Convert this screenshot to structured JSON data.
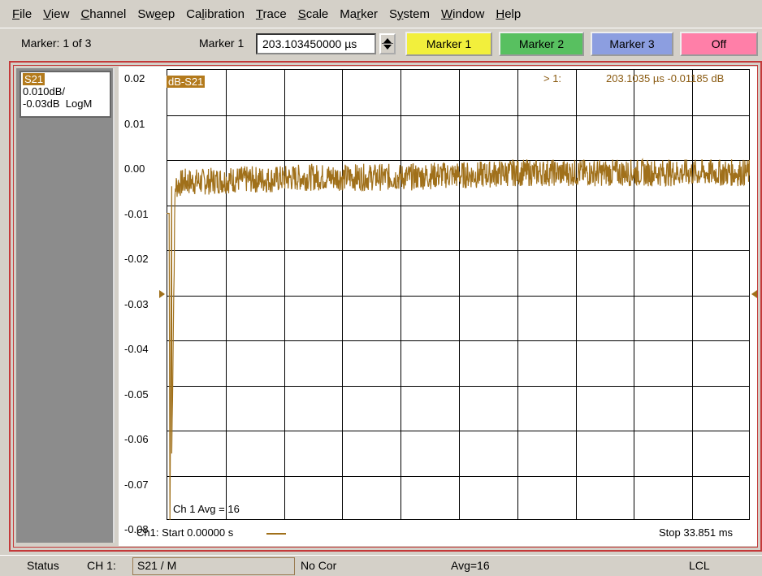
{
  "menu": [
    "File",
    "View",
    "Channel",
    "Sweep",
    "Calibration",
    "Trace",
    "Scale",
    "Marker",
    "System",
    "Window",
    "Help"
  ],
  "menu_accel": [
    0,
    0,
    0,
    2,
    2,
    0,
    0,
    2,
    1,
    0,
    0
  ],
  "toolbar": {
    "marker_count": "Marker: 1 of 3",
    "marker_field_label": "Marker 1",
    "marker_value": "203.103450000 µs",
    "buttons": [
      {
        "label": "Marker 1",
        "color": "#f2ef3c"
      },
      {
        "label": "Marker 2",
        "color": "#58c060"
      },
      {
        "label": "Marker 3",
        "color": "#8c9ee0"
      },
      {
        "label": "Off",
        "color": "#ff7fa8"
      }
    ]
  },
  "trace_panel": {
    "name": "S21",
    "scale": "0.010dB/",
    "ref": "-0.03dB",
    "format": "LogM"
  },
  "plot": {
    "title_tag": "dB-S21",
    "marker_readout_index": "> 1:",
    "marker_readout_value": "203.1035 µs  -0.01185 dB",
    "avg_label": "Ch 1 Avg =  16",
    "start_label": "Ch1: Start 0.00000 s",
    "stop_label": "Stop  33.851 ms",
    "trace_color": "#a0701a"
  },
  "chart_data": {
    "type": "line",
    "title": "dB-S21",
    "xlabel": "",
    "ylabel": "",
    "xlim": [
      0,
      33.851
    ],
    "ylim": [
      -0.08,
      0.02
    ],
    "yticks": [
      "0.02",
      "0.01",
      "0.00",
      "-0.01",
      "-0.02",
      "-0.03",
      "-0.04",
      "-0.05",
      "-0.06",
      "-0.07",
      "-0.08"
    ],
    "x_units": "ms",
    "grid": true,
    "series": [
      {
        "x": [
          0,
          0.2,
          0.25,
          0.5,
          1,
          2,
          4,
          6,
          8,
          10,
          12,
          14,
          16,
          18,
          20,
          22,
          24,
          26,
          28,
          30,
          32,
          33.851
        ],
        "y": [
          -0.012,
          -0.012,
          -0.08,
          -0.006,
          -0.005,
          -0.005,
          -0.0045,
          -0.0045,
          -0.004,
          -0.004,
          -0.004,
          -0.004,
          -0.0035,
          -0.0035,
          -0.003,
          -0.003,
          -0.003,
          -0.003,
          -0.003,
          -0.003,
          -0.003,
          -0.003
        ]
      }
    ]
  },
  "status": {
    "label": "Status",
    "channel": "CH 1:",
    "trace": "S21 / M",
    "correction": "No Cor",
    "avg": "Avg=16",
    "mode": "LCL"
  }
}
